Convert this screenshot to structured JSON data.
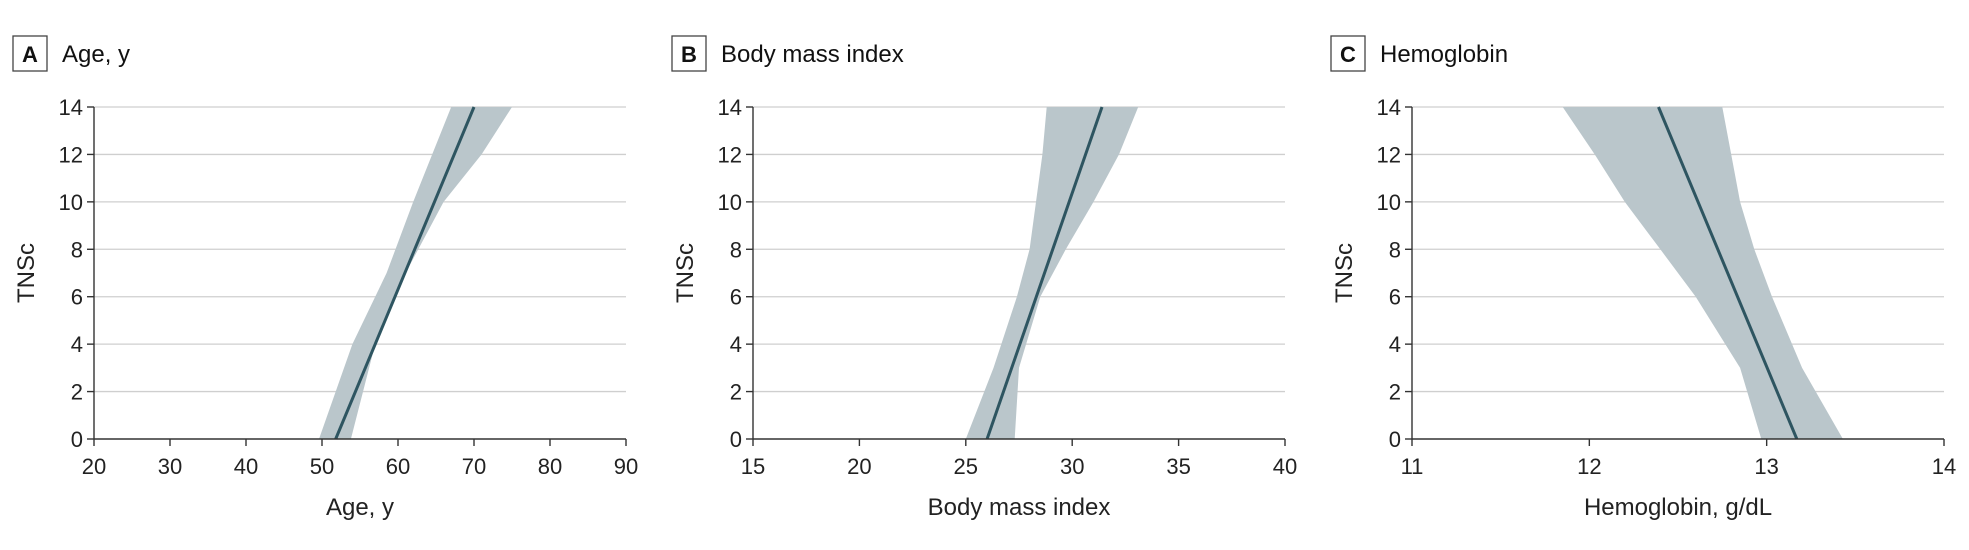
{
  "chart_data": [
    {
      "panel": "A",
      "type": "line",
      "title": "Age, y",
      "xlabel": "Age, y",
      "ylabel": "TNSc",
      "xlim": [
        20,
        90
      ],
      "ylim": [
        0,
        14
      ],
      "xticks": [
        20,
        30,
        40,
        50,
        60,
        70,
        80,
        90
      ],
      "yticks": [
        0,
        2,
        4,
        6,
        8,
        10,
        12,
        14
      ],
      "grid": "horizontal",
      "line_color": "#2e5561",
      "band_color": "#bac6cb",
      "series": {
        "x": [
          51.8,
          70.0
        ],
        "y": [
          0,
          14
        ]
      },
      "confidence_band": {
        "lower": {
          "x": [
            53.8,
            57.0,
            61.0,
            66.0,
            71.0,
            75.0
          ],
          "y": [
            0,
            4,
            7,
            10,
            12,
            14
          ]
        },
        "upper": {
          "x": [
            49.6,
            54.0,
            58.5,
            62.0,
            64.5,
            67.0
          ],
          "y": [
            0,
            4,
            7,
            10,
            12,
            14
          ]
        }
      }
    },
    {
      "panel": "B",
      "type": "line",
      "title": "Body mass index",
      "xlabel": "Body mass index",
      "ylabel": "TNSc",
      "xlim": [
        15,
        40
      ],
      "ylim": [
        0,
        14
      ],
      "xticks": [
        15,
        20,
        25,
        30,
        35,
        40
      ],
      "yticks": [
        0,
        2,
        4,
        6,
        8,
        10,
        12,
        14
      ],
      "grid": "horizontal",
      "line_color": "#2e5561",
      "band_color": "#bac6cb",
      "series": {
        "x": [
          26.0,
          31.4
        ],
        "y": [
          0,
          14
        ]
      },
      "confidence_band": {
        "lower": {
          "x": [
            27.3,
            27.5,
            28.5,
            29.7,
            31.0,
            32.2,
            33.1
          ],
          "y": [
            0,
            3,
            6,
            8,
            10,
            12,
            14
          ]
        },
        "upper": {
          "x": [
            25.0,
            26.3,
            27.4,
            28.0,
            28.3,
            28.6,
            28.8
          ],
          "y": [
            0,
            3,
            6,
            8,
            10,
            12,
            14
          ]
        }
      }
    },
    {
      "panel": "C",
      "type": "line",
      "title": "Hemoglobin",
      "xlabel": "Hemoglobin, g/dL",
      "ylabel": "TNSc",
      "xlim": [
        11,
        14
      ],
      "ylim": [
        0,
        14
      ],
      "xticks": [
        11,
        12,
        13,
        14
      ],
      "yticks": [
        0,
        2,
        4,
        6,
        8,
        10,
        12,
        14
      ],
      "grid": "horizontal",
      "line_color": "#2e5561",
      "band_color": "#bac6cb",
      "series": {
        "x": [
          13.17,
          12.39
        ],
        "y": [
          0,
          14
        ]
      },
      "confidence_band": {
        "upper": {
          "x": [
            13.43,
            13.2,
            13.03,
            12.93,
            12.85,
            12.8,
            12.75
          ],
          "y": [
            0,
            3,
            6,
            8,
            10,
            12,
            14
          ]
        },
        "lower": {
          "x": [
            12.97,
            12.85,
            12.6,
            12.4,
            12.2,
            12.03,
            11.85
          ],
          "y": [
            0,
            3,
            6,
            8,
            10,
            12,
            14
          ]
        }
      }
    }
  ]
}
